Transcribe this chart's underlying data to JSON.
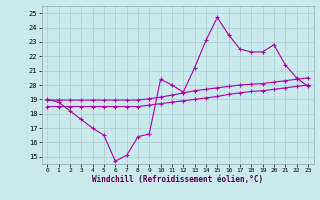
{
  "xlabel": "Windchill (Refroidissement éolien,°C)",
  "background_color": "#c8eaea",
  "grid_color": "#b0c8c8",
  "line_color": "#aa00aa",
  "ylim": [
    14.5,
    25.5
  ],
  "xlim": [
    -0.5,
    23.5
  ],
  "yticks": [
    15,
    16,
    17,
    18,
    19,
    20,
    21,
    22,
    23,
    24,
    25
  ],
  "xticks": [
    0,
    1,
    2,
    3,
    4,
    5,
    6,
    7,
    8,
    9,
    10,
    11,
    12,
    13,
    14,
    15,
    16,
    17,
    18,
    19,
    20,
    21,
    22,
    23
  ],
  "hours": [
    0,
    1,
    2,
    3,
    4,
    5,
    6,
    7,
    8,
    9,
    10,
    11,
    12,
    13,
    14,
    15,
    16,
    17,
    18,
    19,
    20,
    21,
    22,
    23
  ],
  "windchill": [
    19.0,
    18.8,
    18.2,
    17.6,
    17.0,
    16.5,
    14.7,
    15.1,
    16.4,
    16.6,
    20.4,
    20.0,
    19.5,
    21.2,
    23.1,
    24.7,
    23.5,
    22.5,
    22.3,
    22.3,
    22.8,
    21.4,
    20.5,
    19.9
  ],
  "line_upper": [
    18.95,
    18.95,
    18.95,
    18.95,
    18.95,
    18.95,
    18.95,
    18.95,
    18.95,
    19.05,
    19.15,
    19.3,
    19.45,
    19.6,
    19.7,
    19.8,
    19.9,
    20.0,
    20.05,
    20.1,
    20.2,
    20.3,
    20.4,
    20.5
  ],
  "line_lower": [
    18.5,
    18.5,
    18.5,
    18.5,
    18.5,
    18.5,
    18.5,
    18.5,
    18.5,
    18.6,
    18.7,
    18.8,
    18.9,
    19.0,
    19.1,
    19.2,
    19.35,
    19.45,
    19.55,
    19.6,
    19.7,
    19.8,
    19.9,
    20.0
  ]
}
